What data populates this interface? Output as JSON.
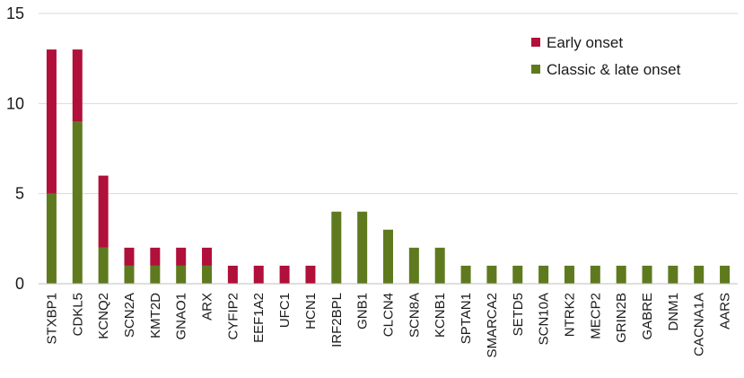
{
  "chart_data": {
    "type": "bar",
    "stacked": true,
    "categories": [
      "STXBP1",
      "CDKL5",
      "KCNQ2",
      "SCN2A",
      "KMT2D",
      "GNAO1",
      "ARX",
      "CYFIP2",
      "EEF1A2",
      "UFC1",
      "HCN1",
      "IRF2BPL",
      "GNB1",
      "CLCN4",
      "SCN8A",
      "KCNB1",
      "SPTAN1",
      "SMARCA2",
      "SETD5",
      "SCN10A",
      "NTRK2",
      "MECP2",
      "GRIN2B",
      "GABRE",
      "DNM1",
      "CACNA1A",
      "AARS"
    ],
    "series": [
      {
        "name": "Classic & late onset",
        "color": "#5f7a1e",
        "values": [
          5,
          9,
          2,
          1,
          1,
          1,
          1,
          0,
          0,
          0,
          0,
          4,
          4,
          3,
          2,
          2,
          1,
          1,
          1,
          1,
          1,
          1,
          1,
          1,
          1,
          1,
          1
        ]
      },
      {
        "name": "Early onset",
        "color": "#b0103a",
        "values": [
          8,
          4,
          4,
          1,
          1,
          1,
          1,
          1,
          1,
          1,
          1,
          0,
          0,
          0,
          0,
          0,
          0,
          0,
          0,
          0,
          0,
          0,
          0,
          0,
          0,
          0,
          0
        ]
      }
    ],
    "legend_order": [
      "Early onset",
      "Classic & late onset"
    ],
    "legend_position": "top-right",
    "ylim": [
      0,
      15
    ],
    "yticks": [
      "0",
      "5",
      "10",
      "15"
    ],
    "grid": "horizontal",
    "title": "",
    "xlabel": "",
    "ylabel": ""
  }
}
